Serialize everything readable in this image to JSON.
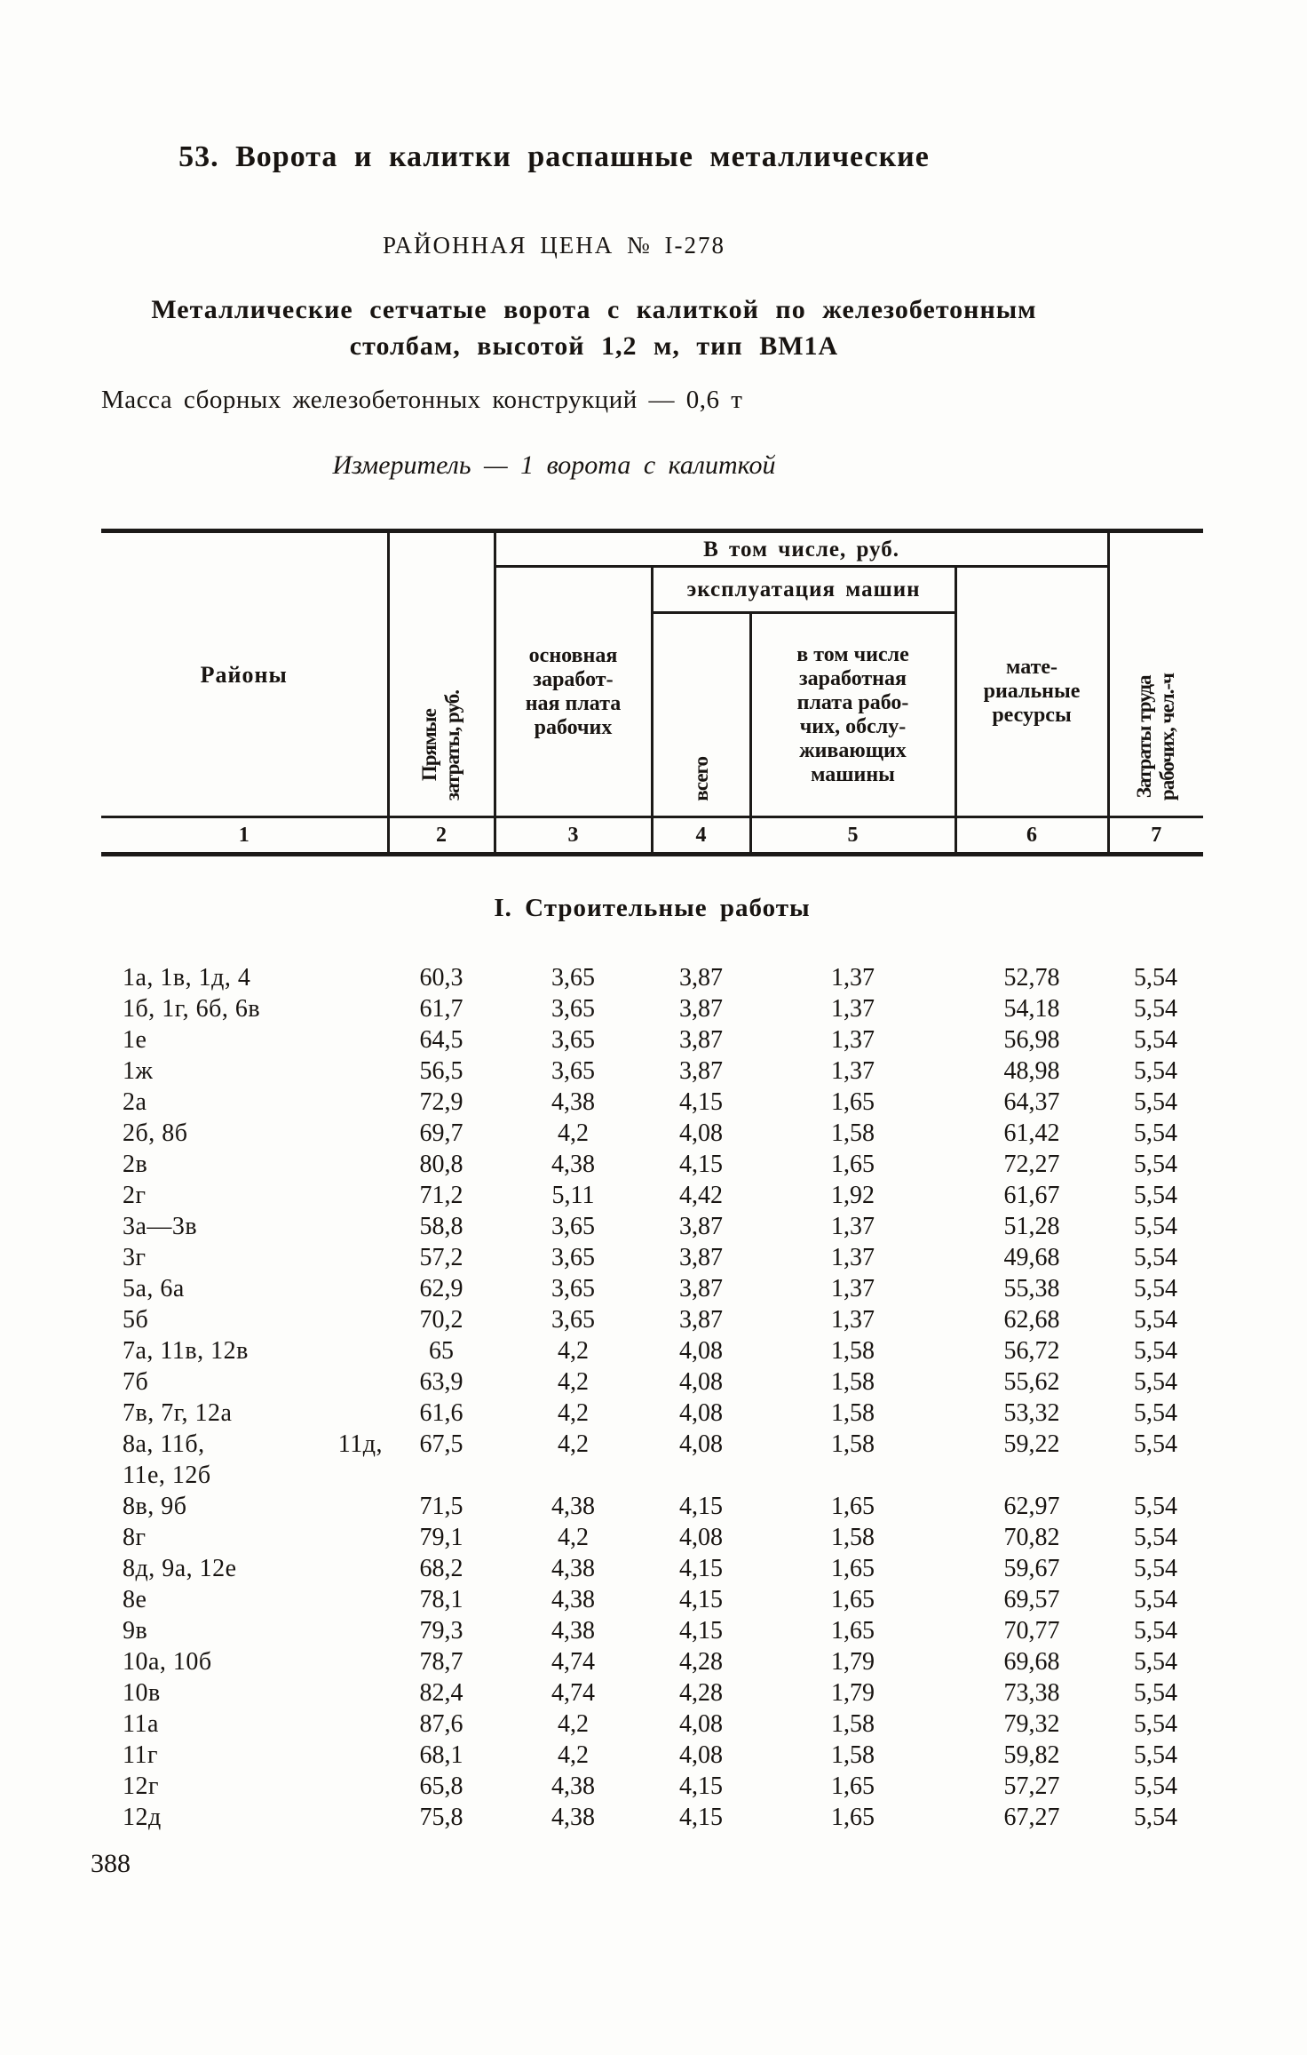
{
  "doc": {
    "title": "53. Ворота и калитки распашные металлические",
    "price_label": "РАЙОННАЯ ЦЕНА № I-278",
    "description_line1": "Металлические сетчатые ворота с калиткой по железобетонным",
    "description_line2": "столбам, высотой 1,2 м, тип ВМ1А",
    "mass_line": "Масса сборных железобетонных конструкций — 0,6 т",
    "measure_line": "Измеритель — 1 ворота с калиткой",
    "page_number": "388"
  },
  "table": {
    "headers": {
      "col1": "Районы",
      "col2": "Прямые\nзатраты, руб.",
      "group_3_6": "В том числе, руб.",
      "col3": "основная\nзаработ-\nная плата\nрабочих",
      "group_4_5": "эксплуатация машин",
      "col4": "всего",
      "col5": "в том числе\nзаработная\nплата рабо-\nчих, обслу-\nживающих\nмашины",
      "col6": "мате-\nриальные\nресурсы",
      "col7": "Затраты труда\nрабочих, чел.-ч",
      "numbers": [
        "1",
        "2",
        "3",
        "4",
        "5",
        "6",
        "7"
      ]
    },
    "section_title": "I. Строительные работы",
    "rows": [
      {
        "label": "1а, 1в, 1д, 4",
        "values": [
          "60,3",
          "3,65",
          "3,87",
          "1,37",
          "52,78",
          "5,54"
        ]
      },
      {
        "label": "1б, 1г, 6б, 6в",
        "values": [
          "61,7",
          "3,65",
          "3,87",
          "1,37",
          "54,18",
          "5,54"
        ]
      },
      {
        "label": "1е",
        "values": [
          "64,5",
          "3,65",
          "3,87",
          "1,37",
          "56,98",
          "5,54"
        ]
      },
      {
        "label": "1ж",
        "values": [
          "56,5",
          "3,65",
          "3,87",
          "1,37",
          "48,98",
          "5,54"
        ]
      },
      {
        "label": "2а",
        "values": [
          "72,9",
          "4,38",
          "4,15",
          "1,65",
          "64,37",
          "5,54"
        ]
      },
      {
        "label": "2б, 8б",
        "values": [
          "69,7",
          "4,2",
          "4,08",
          "1,58",
          "61,42",
          "5,54"
        ]
      },
      {
        "label": "2в",
        "values": [
          "80,8",
          "4,38",
          "4,15",
          "1,65",
          "72,27",
          "5,54"
        ]
      },
      {
        "label": "2г",
        "values": [
          "71,2",
          "5,11",
          "4,42",
          "1,92",
          "61,67",
          "5,54"
        ]
      },
      {
        "label": "3а—3в",
        "values": [
          "58,8",
          "3,65",
          "3,87",
          "1,37",
          "51,28",
          "5,54"
        ]
      },
      {
        "label": "3г",
        "values": [
          "57,2",
          "3,65",
          "3,87",
          "1,37",
          "49,68",
          "5,54"
        ]
      },
      {
        "label": "5а, 6а",
        "values": [
          "62,9",
          "3,65",
          "3,87",
          "1,37",
          "55,38",
          "5,54"
        ]
      },
      {
        "label": "5б",
        "values": [
          "70,2",
          "3,65",
          "3,87",
          "1,37",
          "62,68",
          "5,54"
        ]
      },
      {
        "label": "7а, 11в, 12в",
        "values": [
          "65",
          "4,2",
          "4,08",
          "1,58",
          "56,72",
          "5,54"
        ]
      },
      {
        "label": "7б",
        "values": [
          "63,9",
          "4,2",
          "4,08",
          "1,58",
          "55,62",
          "5,54"
        ]
      },
      {
        "label": "7в, 7г, 12а",
        "values": [
          "61,6",
          "4,2",
          "4,08",
          "1,58",
          "53,32",
          "5,54"
        ]
      },
      {
        "label": "8а,  11б,",
        "label_right": "11д,",
        "label2": "11е, 12б",
        "values": [
          "67,5",
          "4,2",
          "4,08",
          "1,58",
          "59,22",
          "5,54"
        ]
      },
      {
        "label": "8в, 9б",
        "values": [
          "71,5",
          "4,38",
          "4,15",
          "1,65",
          "62,97",
          "5,54"
        ]
      },
      {
        "label": "8г",
        "values": [
          "79,1",
          "4,2",
          "4,08",
          "1,58",
          "70,82",
          "5,54"
        ]
      },
      {
        "label": "8д, 9а, 12е",
        "values": [
          "68,2",
          "4,38",
          "4,15",
          "1,65",
          "59,67",
          "5,54"
        ]
      },
      {
        "label": "8е",
        "values": [
          "78,1",
          "4,38",
          "4,15",
          "1,65",
          "69,57",
          "5,54"
        ]
      },
      {
        "label": "9в",
        "values": [
          "79,3",
          "4,38",
          "4,15",
          "1,65",
          "70,77",
          "5,54"
        ]
      },
      {
        "label": "10а, 10б",
        "values": [
          "78,7",
          "4,74",
          "4,28",
          "1,79",
          "69,68",
          "5,54"
        ]
      },
      {
        "label": "10в",
        "values": [
          "82,4",
          "4,74",
          "4,28",
          "1,79",
          "73,38",
          "5,54"
        ]
      },
      {
        "label": "11а",
        "values": [
          "87,6",
          "4,2",
          "4,08",
          "1,58",
          "79,32",
          "5,54"
        ]
      },
      {
        "label": "11г",
        "values": [
          "68,1",
          "4,2",
          "4,08",
          "1,58",
          "59,82",
          "5,54"
        ]
      },
      {
        "label": "12г",
        "values": [
          "65,8",
          "4,38",
          "4,15",
          "1,65",
          "57,27",
          "5,54"
        ]
      },
      {
        "label": "12д",
        "values": [
          "75,8",
          "4,38",
          "4,15",
          "1,65",
          "67,27",
          "5,54"
        ]
      }
    ]
  }
}
